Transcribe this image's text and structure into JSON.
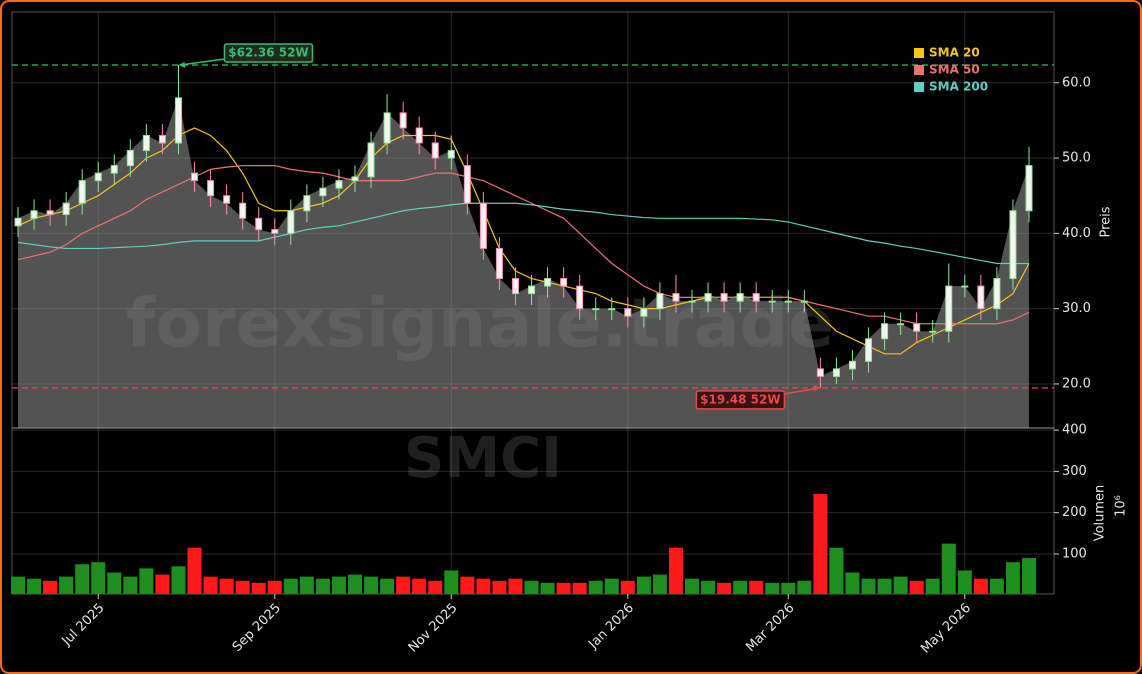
{
  "chart_data": [
    {
      "type": "candlestick",
      "watermark": "forexsignale.trade",
      "ylabel": "Preis",
      "categories": [
        null,
        null,
        null,
        null,
        null,
        "Jul 2025",
        null,
        null,
        null,
        null,
        null,
        null,
        null,
        null,
        null,
        null,
        "Sep 2025",
        null,
        null,
        null,
        null,
        null,
        null,
        null,
        null,
        null,
        null,
        "Nov 2025",
        null,
        null,
        null,
        null,
        null,
        null,
        null,
        null,
        null,
        null,
        "Jan 2026",
        null,
        null,
        null,
        null,
        null,
        null,
        null,
        null,
        null,
        "Mar 2026",
        null,
        null,
        null,
        null,
        null,
        null,
        null,
        null,
        null,
        null,
        "May 2026",
        null,
        null,
        null,
        null
      ],
      "open": [
        41,
        42,
        43,
        42.5,
        44,
        47,
        48,
        49,
        51,
        53,
        52,
        48,
        47,
        45,
        44,
        42,
        40.5,
        40,
        43,
        45,
        46,
        47,
        47.5,
        52,
        56,
        54,
        52,
        50,
        49,
        44,
        38,
        34,
        32,
        33,
        34,
        33,
        30,
        30,
        30,
        29,
        30,
        32,
        31,
        31,
        32,
        31,
        32,
        31,
        31,
        31,
        22,
        21,
        22,
        23,
        26,
        28,
        28,
        27,
        27,
        33,
        33,
        30,
        34,
        43
      ],
      "high": [
        43.5,
        44.5,
        44.5,
        45.5,
        48.5,
        49.5,
        50.5,
        52.5,
        54.5,
        54.5,
        62.36,
        49.5,
        48.5,
        46.5,
        45.5,
        43.5,
        42,
        44.5,
        46.5,
        47.5,
        48.5,
        49,
        53.5,
        58.5,
        57.5,
        55.5,
        53.5,
        53,
        50.5,
        45.5,
        39.5,
        35.5,
        34.5,
        35.5,
        35.5,
        34.5,
        31.5,
        31.5,
        31.5,
        31.5,
        33.5,
        34.5,
        32.5,
        33.5,
        33.5,
        33.5,
        33.5,
        32.5,
        32.5,
        32.5,
        23.5,
        23.5,
        24.5,
        27.5,
        29.5,
        29.5,
        29.5,
        28.5,
        36,
        34.5,
        34.5,
        35.5,
        44.5,
        51.5
      ],
      "low": [
        39.5,
        40.5,
        41,
        41,
        42.5,
        45.5,
        46.5,
        47.5,
        49.5,
        50.5,
        50.5,
        45.5,
        43.5,
        42.5,
        40.5,
        39,
        38.5,
        38.5,
        41.5,
        43.5,
        44.5,
        45.5,
        46,
        50.5,
        52.5,
        50.5,
        48.5,
        48.5,
        42.5,
        36.5,
        32.5,
        30.5,
        30.5,
        31.5,
        31.5,
        28.5,
        28.5,
        28.5,
        27.5,
        27.5,
        28.5,
        29.5,
        29.5,
        29.5,
        29.5,
        29.5,
        29.5,
        29.5,
        29.5,
        29.5,
        19.48,
        20,
        20.5,
        21.5,
        24.5,
        26.5,
        25.5,
        25.5,
        25.5,
        31.5,
        28.5,
        28.5,
        32.5,
        41.5
      ],
      "close": [
        42,
        43,
        42.5,
        44,
        47,
        48,
        49,
        51,
        53,
        52,
        58,
        47,
        45,
        44,
        42,
        40.5,
        40,
        43,
        45,
        46,
        47,
        47.5,
        52,
        56,
        54,
        52,
        50,
        51,
        44,
        38,
        34,
        32,
        33,
        34,
        33,
        30,
        30,
        30,
        29,
        30,
        32,
        31,
        31,
        32,
        31,
        32,
        31,
        31,
        31,
        31,
        21,
        22,
        23,
        26,
        28,
        28,
        27,
        27,
        33,
        33,
        30,
        34,
        43,
        49
      ],
      "up_color": "#8fe88f",
      "down_color": "#ff8fa8",
      "area_color": "#8a8a8a",
      "series": [
        {
          "name": "SMA 20",
          "color": "#f5c518",
          "values": [
            41,
            42,
            42.5,
            43,
            44,
            45,
            46.5,
            48,
            50,
            51,
            53,
            54,
            53,
            51,
            48,
            44,
            43,
            43,
            43.5,
            44,
            45,
            47,
            50,
            52,
            53,
            53,
            53,
            52.5,
            48,
            43,
            38,
            35,
            34,
            33.5,
            33,
            32.5,
            32,
            31,
            30.5,
            30,
            30,
            30.5,
            31,
            31.5,
            31.5,
            31.5,
            31.5,
            31.5,
            31.5,
            31,
            29,
            27,
            26,
            25,
            24,
            24,
            25.5,
            26.5,
            27.5,
            28.5,
            29.5,
            30.5,
            32,
            36
          ]
        },
        {
          "name": "SMA 50",
          "color": "#f07070",
          "values": [
            36.5,
            37,
            37.5,
            38.5,
            40,
            41,
            42,
            43,
            44.5,
            45.5,
            46.5,
            47.5,
            48.5,
            48.8,
            49,
            49,
            49,
            48.5,
            48.2,
            48,
            47.5,
            47,
            47,
            47,
            47,
            47.5,
            48,
            48,
            47.5,
            47,
            46,
            45,
            44,
            43,
            42,
            40,
            38,
            36,
            34.5,
            33,
            32,
            31.5,
            31.5,
            31.5,
            31.5,
            31.5,
            31.5,
            31.5,
            31.5,
            31,
            30.5,
            30,
            29.5,
            29,
            29,
            28.5,
            28,
            28,
            28,
            28,
            28,
            28,
            28.5,
            29.5
          ]
        },
        {
          "name": "SMA 200",
          "color": "#5fcfc4",
          "values": [
            38.8,
            38.5,
            38.2,
            38,
            38,
            38,
            38.1,
            38.2,
            38.3,
            38.5,
            38.8,
            39,
            39,
            39,
            39,
            39,
            39.5,
            40,
            40.5,
            40.8,
            41,
            41.5,
            42,
            42.5,
            43,
            43.3,
            43.5,
            43.8,
            44,
            44,
            44,
            44,
            43.8,
            43.5,
            43.2,
            43,
            42.8,
            42.5,
            42.3,
            42.1,
            42,
            42,
            42,
            42,
            42,
            42,
            41.9,
            41.8,
            41.5,
            41,
            40.5,
            40,
            39.5,
            39,
            38.7,
            38.3,
            38,
            37.6,
            37.2,
            36.8,
            36.4,
            36,
            36,
            36
          ]
        }
      ],
      "legend": "upper right",
      "annotations": [
        {
          "label": "$62.36 52W",
          "value": 62.36,
          "color": "#3dbb6a"
        },
        {
          "label": "$19.48 52W",
          "value": 19.48,
          "color": "#e84a4a"
        }
      ],
      "ylim": [
        14.15,
        69.4
      ],
      "yticks": [
        {
          "value": 20,
          "label": "20.0"
        },
        {
          "value": 30,
          "label": "30.0"
        },
        {
          "value": 40,
          "label": "40.0"
        },
        {
          "value": 50,
          "label": "50.0"
        },
        {
          "value": 60,
          "label": "60.0"
        }
      ],
      "grid": true
    },
    {
      "type": "bar",
      "watermark": "SMCI",
      "ylabel": "Volumen",
      "yunit": "10⁶",
      "values": [
        45,
        40,
        35,
        45,
        75,
        80,
        55,
        45,
        65,
        50,
        70,
        115,
        45,
        40,
        35,
        30,
        35,
        40,
        45,
        40,
        45,
        50,
        45,
        40,
        45,
        40,
        35,
        60,
        45,
        40,
        35,
        40,
        35,
        30,
        30,
        30,
        35,
        40,
        35,
        45,
        50,
        115,
        40,
        35,
        30,
        35,
        35,
        30,
        30,
        35,
        245,
        115,
        55,
        40,
        40,
        45,
        35,
        40,
        125,
        60,
        40,
        40,
        80,
        90
      ],
      "up_color": "#1e8f1e",
      "down_color": "#ff1a1a",
      "ylim": [
        3,
        405
      ],
      "yticks": [
        100,
        200,
        300,
        400
      ],
      "grid": true
    }
  ]
}
